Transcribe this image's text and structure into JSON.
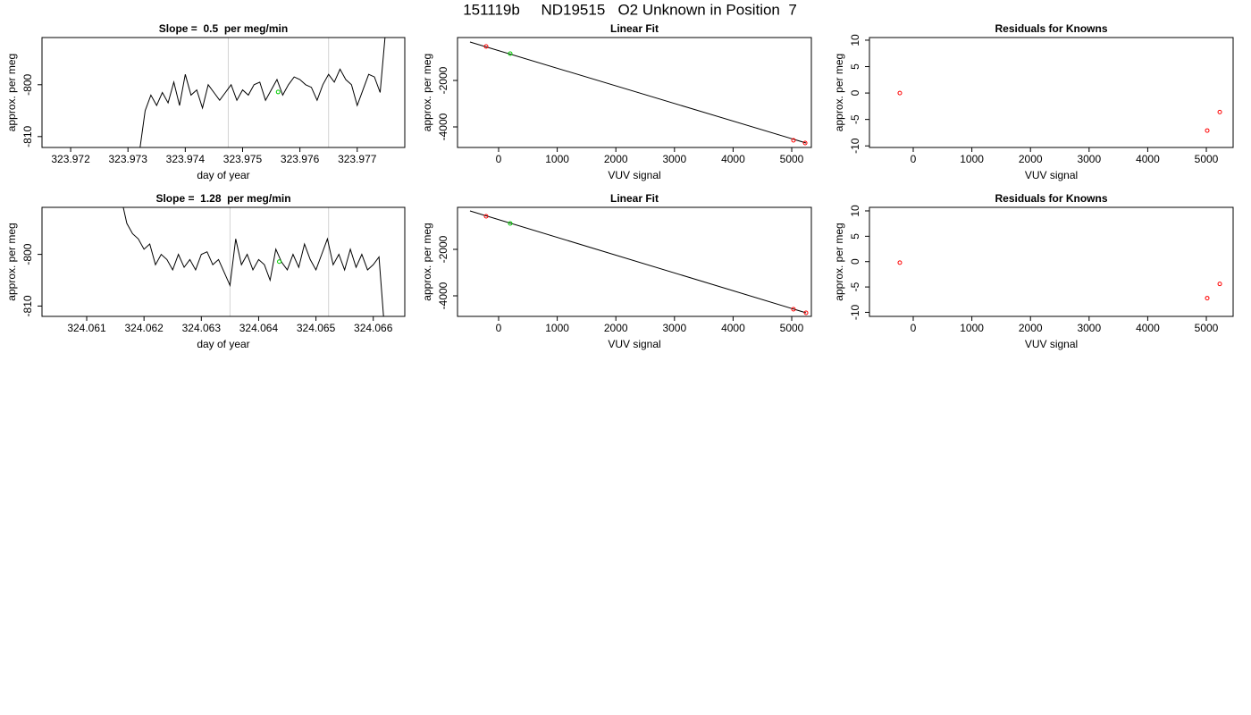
{
  "title": "151119b     ND19515   O2 Unknown in Position  7",
  "chart_data": [
    {
      "type": "line",
      "title": "Slope =  0.5  per meg/min",
      "x_label": "day of year",
      "y_label": "approx. per meg",
      "x": [
        323.9732,
        323.9733,
        323.9734,
        323.9735,
        323.9736,
        323.9737,
        323.9738,
        323.9739,
        323.974,
        323.9741,
        323.9742,
        323.9743,
        323.9744,
        323.9745,
        323.9746,
        323.9747,
        323.9748,
        323.9749,
        323.975,
        323.9751,
        323.9752,
        323.9753,
        323.9754,
        323.9755,
        323.9756,
        323.9757,
        323.9758,
        323.9759,
        323.976,
        323.9761,
        323.9762,
        323.9763,
        323.9764,
        323.9765,
        323.9766,
        323.9767,
        323.9768,
        323.9769,
        323.977,
        323.9771,
        323.9772,
        323.9773,
        323.9774,
        323.9775
      ],
      "values": [
        -813,
        -805,
        -802,
        -804,
        -801.5,
        -803.5,
        -799.5,
        -804,
        -798,
        -802,
        -801,
        -804.5,
        -800,
        -801.5,
        -803,
        -801.5,
        -800,
        -803,
        -801,
        -802,
        -800,
        -799.5,
        -803,
        -801,
        -799,
        -802,
        -800,
        -798.5,
        -799,
        -800,
        -800.5,
        -803,
        -800,
        -798,
        -799.5,
        -797,
        -799,
        -800,
        -804,
        -801,
        -798,
        -798.5,
        -801.5,
        -789
      ],
      "color": "#000000",
      "xlim": [
        323.9715,
        323.97783
      ],
      "ylim": [
        -812.1,
        -790.9
      ],
      "xticks": [
        323.972,
        323.973,
        323.974,
        323.975,
        323.976,
        323.977
      ],
      "yticks": [
        -810,
        -800
      ],
      "vlines": [
        323.97475,
        323.9765
      ],
      "vline_color": "#d3d3d3",
      "marker": {
        "x": 323.97562,
        "y": -801.4,
        "color": "#00cc00"
      }
    },
    {
      "type": "scatter",
      "title": "Linear Fit",
      "x_label": "VUV signal",
      "y_label": "approx. per meg",
      "series": [
        {
          "style": "line",
          "color": "#000000",
          "x": [
            -488,
            5244
          ],
          "values": [
            -346,
            -4692
          ]
        },
        {
          "style": "points",
          "color": "#ff0000",
          "x": [
            -213,
            5030,
            5229
          ],
          "values": [
            -538,
            -4577,
            -4692
          ]
        },
        {
          "style": "points",
          "color": "#00cc00",
          "x": [
            198
          ],
          "values": [
            -846
          ]
        }
      ],
      "xlim": [
        -701,
        5335
      ],
      "ylim": [
        -4885,
        -152
      ],
      "xticks": [
        0,
        1000,
        2000,
        3000,
        4000,
        5000
      ],
      "yticks": [
        -4000,
        -2000
      ]
    },
    {
      "type": "scatter",
      "title": "Residuals for Knowns",
      "x_label": "VUV signal",
      "y_label": "approx. per meg",
      "series": [
        {
          "style": "points",
          "color": "#ff0000",
          "x": [
            -229,
            5015,
            5229
          ],
          "values": [
            0,
            -7.1,
            -3.6
          ]
        }
      ],
      "xlim": [
        -747,
        5457
      ],
      "ylim": [
        -10.3,
        10.5
      ],
      "xticks": [
        0,
        1000,
        2000,
        3000,
        4000,
        5000
      ],
      "yticks": [
        -10,
        -5,
        0,
        5,
        10
      ]
    },
    {
      "type": "line",
      "title": "Slope =  1.28  per meg/min",
      "x_label": "day of year",
      "y_label": "approx. per meg",
      "x": [
        324.0616,
        324.0617,
        324.0618,
        324.0619,
        324.062,
        324.0621,
        324.0622,
        324.0623,
        324.0624,
        324.0625,
        324.0626,
        324.0627,
        324.0628,
        324.0629,
        324.063,
        324.0631,
        324.0632,
        324.0633,
        324.0634,
        324.0635,
        324.0636,
        324.0637,
        324.0638,
        324.0639,
        324.064,
        324.0641,
        324.0642,
        324.0643,
        324.0644,
        324.0645,
        324.0646,
        324.0647,
        324.0648,
        324.0649,
        324.065,
        324.0651,
        324.0652,
        324.0653,
        324.0654,
        324.0655,
        324.0656,
        324.0657,
        324.0658,
        324.0659,
        324.066,
        324.0661,
        324.0662
      ],
      "values": [
        -789,
        -794,
        -796,
        -797,
        -799,
        -798,
        -802,
        -800,
        -801,
        -803,
        -800,
        -802.5,
        -801,
        -803,
        -800,
        -799.5,
        -802,
        -801,
        -803.5,
        -806,
        -797,
        -802,
        -800,
        -803,
        -801,
        -802,
        -805,
        -799,
        -801.5,
        -803,
        -800,
        -802.5,
        -798,
        -801,
        -803,
        -800,
        -797,
        -802,
        -800,
        -803,
        -799,
        -802.5,
        -800,
        -803,
        -802,
        -800.5,
        -815
      ],
      "color": "#000000",
      "xlim": [
        324.06022,
        324.06655
      ],
      "ylim": [
        -812.0,
        -790.9
      ],
      "xticks": [
        324.061,
        324.062,
        324.063,
        324.064,
        324.065,
        324.066
      ],
      "yticks": [
        -810,
        -800
      ],
      "vlines": [
        324.0635,
        324.06522
      ],
      "vline_color": "#d3d3d3",
      "marker": {
        "x": 324.06436,
        "y": -801.4,
        "color": "#00cc00"
      }
    },
    {
      "type": "scatter",
      "title": "Linear Fit",
      "x_label": "VUV signal",
      "y_label": "approx. per meg",
      "series": [
        {
          "style": "line",
          "color": "#000000",
          "x": [
            -488,
            5244
          ],
          "values": [
            -346,
            -4731
          ]
        },
        {
          "style": "points",
          "color": "#ff0000",
          "x": [
            -213,
            5030,
            5244
          ],
          "values": [
            -577,
            -4577,
            -4731
          ]
        },
        {
          "style": "points",
          "color": "#00cc00",
          "x": [
            198
          ],
          "values": [
            -885
          ]
        }
      ],
      "xlim": [
        -701,
        5335
      ],
      "ylim": [
        -4885,
        -192
      ],
      "xticks": [
        0,
        1000,
        2000,
        3000,
        4000,
        5000
      ],
      "yticks": [
        -4000,
        -2000
      ]
    },
    {
      "type": "scatter",
      "title": "Residuals for Knowns",
      "x_label": "VUV signal",
      "y_label": "approx. per meg",
      "series": [
        {
          "style": "points",
          "color": "#ff0000",
          "x": [
            -229,
            5015,
            5229
          ],
          "values": [
            -0.2,
            -7.2,
            -4.4
          ]
        }
      ],
      "xlim": [
        -747,
        5457
      ],
      "ylim": [
        -10.8,
        10.7
      ],
      "xticks": [
        0,
        1000,
        2000,
        3000,
        4000,
        5000
      ],
      "yticks": [
        -10,
        -5,
        0,
        5,
        10
      ]
    }
  ]
}
